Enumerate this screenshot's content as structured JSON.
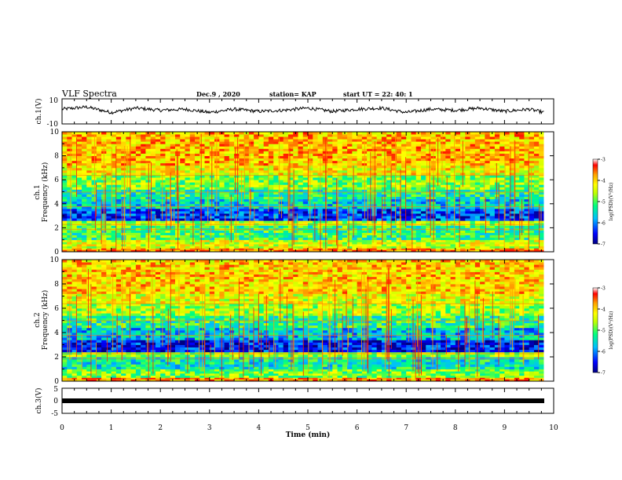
{
  "header": {
    "title": "VLF Spectra",
    "date": "Dec.9  , 2020",
    "station": "station= KAP",
    "start": "start  UT =   22: 40: 1"
  },
  "colors": {
    "spectrum_scale": [
      "#000080",
      "#0000ff",
      "#00bfff",
      "#00ff80",
      "#c0ff00",
      "#ffff00",
      "#ffa000",
      "#ff0000",
      "#ffffff"
    ],
    "trace": "#000000",
    "frame": "#000000"
  },
  "chart_data": [
    {
      "type": "line",
      "name": "ch1-waveform",
      "ylabel": "ch.1(V)",
      "ylim": [
        -10,
        10
      ],
      "ytick_labels": [
        "10",
        "-10"
      ],
      "x": [
        0,
        0.5,
        1,
        1.5,
        2,
        2.5,
        3,
        3.5,
        4,
        4.5,
        5,
        5.5,
        6,
        6.5,
        7,
        7.5,
        8,
        8.5,
        9,
        9.5,
        9.8
      ],
      "y": [
        2,
        4,
        -1,
        3,
        1,
        2,
        -1,
        2,
        0,
        1,
        3,
        0,
        2,
        3,
        -1,
        2,
        1,
        3,
        0,
        2,
        -1
      ],
      "xlim": [
        0,
        10
      ]
    },
    {
      "type": "heatmap",
      "name": "ch1-spectrogram",
      "ylabel": "ch.1\nFrequency  (kHz)",
      "ylim": [
        0,
        10
      ],
      "yticks": [
        "0",
        "2",
        "4",
        "6",
        "8",
        "10"
      ],
      "xlim": [
        0,
        9.8
      ],
      "colorbar": {
        "label": "log(PSD)(V²/Hz)",
        "ticks": [
          "-3",
          "-4",
          "-5",
          "-6",
          "-7"
        ],
        "range": [
          -7,
          -3
        ]
      },
      "bands_khz": [
        {
          "from": 0,
          "to": 0.3,
          "level": -3.6
        },
        {
          "from": 0.3,
          "to": 1.0,
          "level": -4.4
        },
        {
          "from": 1.0,
          "to": 2.2,
          "level": -5.1
        },
        {
          "from": 2.2,
          "to": 2.6,
          "level": -4.6
        },
        {
          "from": 2.6,
          "to": 3.6,
          "level": -6.3
        },
        {
          "from": 3.6,
          "to": 4.4,
          "level": -5.6
        },
        {
          "from": 4.4,
          "to": 5.2,
          "level": -5.3
        },
        {
          "from": 5.2,
          "to": 6.4,
          "level": -4.8
        },
        {
          "from": 6.4,
          "to": 7.2,
          "level": -4.2
        },
        {
          "from": 7.2,
          "to": 10,
          "level": -3.9
        }
      ]
    },
    {
      "type": "heatmap",
      "name": "ch2-spectrogram",
      "ylabel": "ch.2\nFrequency  (kHz)",
      "ylim": [
        0,
        10
      ],
      "yticks": [
        "0",
        "2",
        "4",
        "6",
        "8",
        "10"
      ],
      "xlim": [
        0,
        9.8
      ],
      "colorbar": {
        "label": "log(PSD)(V²/Hz)",
        "ticks": [
          "-3",
          "-4",
          "-5",
          "-6",
          "-7"
        ],
        "range": [
          -7,
          -3
        ]
      },
      "bands_khz": [
        {
          "from": 0,
          "to": 0.3,
          "level": -3.7
        },
        {
          "from": 0.3,
          "to": 1.0,
          "level": -4.8
        },
        {
          "from": 1.0,
          "to": 2.0,
          "level": -5.4
        },
        {
          "from": 2.0,
          "to": 2.4,
          "level": -4.7
        },
        {
          "from": 2.4,
          "to": 3.4,
          "level": -6.5
        },
        {
          "from": 3.4,
          "to": 4.4,
          "level": -5.7
        },
        {
          "from": 4.4,
          "to": 5.4,
          "level": -5.2
        },
        {
          "from": 5.4,
          "to": 6.4,
          "level": -4.6
        },
        {
          "from": 6.4,
          "to": 7.2,
          "level": -4.3
        },
        {
          "from": 7.2,
          "to": 10,
          "level": -4.0
        }
      ]
    },
    {
      "type": "line",
      "name": "ch3-level",
      "ylabel": "ch.3(V)",
      "ylim": [
        -5,
        5
      ],
      "ytick_labels": [
        "5",
        "0",
        "-5"
      ],
      "x": [
        0,
        9.8
      ],
      "y": [
        0,
        0
      ],
      "xlim": [
        0,
        10
      ],
      "xlabel": "Time  (min)",
      "xticks": [
        "0",
        "1",
        "2",
        "3",
        "4",
        "5",
        "6",
        "7",
        "8",
        "9",
        "10"
      ]
    }
  ]
}
